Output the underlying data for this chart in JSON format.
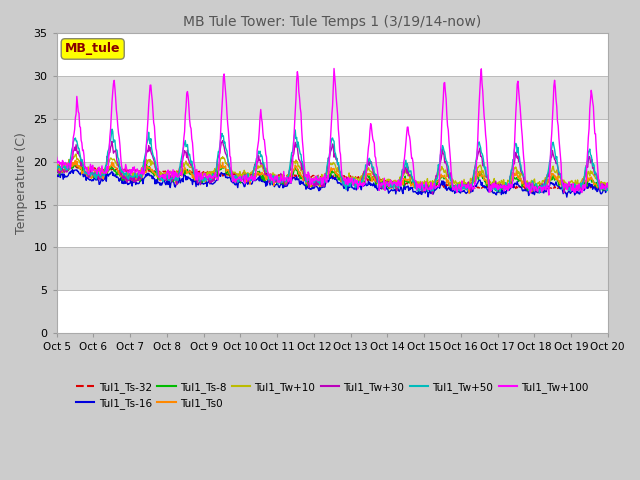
{
  "title": "MB Tule Tower: Tule Temps 1 (3/19/14-now)",
  "ylabel": "Temperature (C)",
  "ylim": [
    0,
    35
  ],
  "yticks": [
    0,
    5,
    10,
    15,
    20,
    25,
    30,
    35
  ],
  "x_tick_labels": [
    "Oct 5",
    "Oct 6",
    "Oct 7",
    "Oct 8",
    "Oct 9",
    "Oct 10",
    "Oct 11",
    "Oct 12",
    "Oct 13",
    "Oct 14",
    "Oct 15",
    "Oct 16",
    "Oct 17",
    "Oct 18",
    "Oct 19",
    "Oct 20"
  ],
  "series": [
    {
      "label": "Tul1_Ts-32",
      "color": "#dd0000"
    },
    {
      "label": "Tul1_Ts-16",
      "color": "#0000dd"
    },
    {
      "label": "Tul1_Ts-8",
      "color": "#00bb00"
    },
    {
      "label": "Tul1_Ts0",
      "color": "#ff8800"
    },
    {
      "label": "Tul1_Tw+10",
      "color": "#bbbb00"
    },
    {
      "label": "Tul1_Tw+30",
      "color": "#bb00bb"
    },
    {
      "label": "Tul1_Tw+50",
      "color": "#00bbbb"
    },
    {
      "label": "Tul1_Tw+100",
      "color": "#ff00ff"
    }
  ],
  "legend_box_color": "#ffff00",
  "legend_box_text": "MB_tule",
  "legend_box_text_color": "#880000",
  "figure_bg": "#cccccc",
  "plot_bg_light": "#ffffff",
  "plot_bg_dark": "#e0e0e0",
  "grid_color": "#bbbbbb",
  "title_color": "#555555",
  "label_color": "#555555"
}
